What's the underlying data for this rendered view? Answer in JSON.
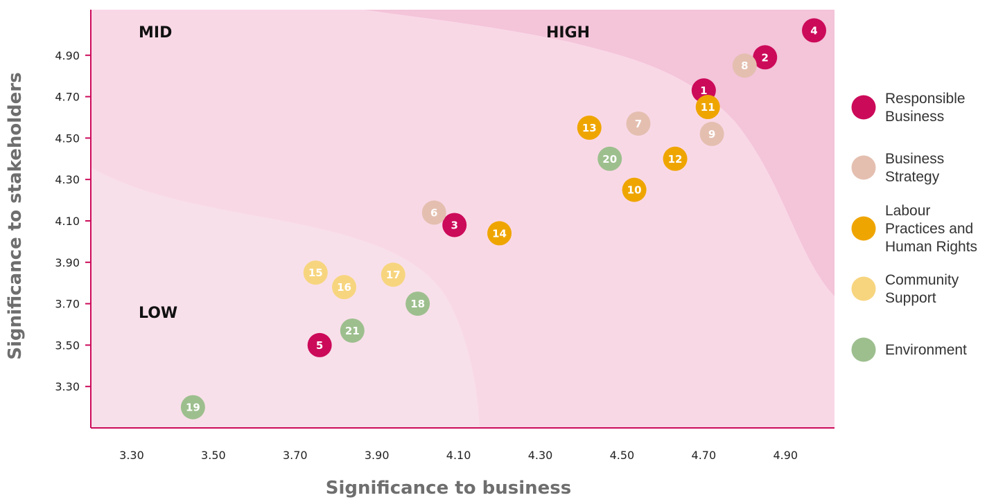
{
  "chart_data": {
    "type": "scatter",
    "xlabel": "Significance to business",
    "ylabel": "Significance to stakeholders",
    "xlim": [
      3.2,
      5.02
    ],
    "ylim": [
      3.1,
      5.12
    ],
    "x_ticks": [
      "3.30",
      "3.50",
      "3.70",
      "3.90",
      "4.10",
      "4.30",
      "4.50",
      "4.70",
      "4.90"
    ],
    "y_ticks": [
      "3.30",
      "3.50",
      "3.70",
      "3.90",
      "4.10",
      "4.30",
      "4.50",
      "4.70",
      "4.90"
    ],
    "zones": [
      "MID",
      "HIGH",
      "LOW"
    ],
    "categories": [
      {
        "key": "rb",
        "name": "Responsible Business",
        "lines": [
          "Responsible",
          "Business"
        ],
        "color": "#cc0a5a"
      },
      {
        "key": "bs",
        "name": "Business Strategy",
        "lines": [
          "Business",
          "Strategy"
        ],
        "color": "#e4bfb0"
      },
      {
        "key": "lp",
        "name": "Labour Practices and Human Rights",
        "lines": [
          "Labour",
          "Practices and",
          "Human Rights"
        ],
        "color": "#efa500"
      },
      {
        "key": "cs",
        "name": "Community Support",
        "lines": [
          "Community",
          "Support"
        ],
        "color": "#f7d57f"
      },
      {
        "key": "env",
        "name": "Environment",
        "lines": [
          "Environment"
        ],
        "color": "#9dbf8e"
      }
    ],
    "points": [
      {
        "label": "1",
        "x": 4.7,
        "y": 4.73,
        "cat": "rb"
      },
      {
        "label": "2",
        "x": 4.85,
        "y": 4.89,
        "cat": "rb"
      },
      {
        "label": "3",
        "x": 4.09,
        "y": 4.08,
        "cat": "rb"
      },
      {
        "label": "4",
        "x": 4.97,
        "y": 5.02,
        "cat": "rb"
      },
      {
        "label": "5",
        "x": 3.76,
        "y": 3.5,
        "cat": "rb"
      },
      {
        "label": "6",
        "x": 4.04,
        "y": 4.14,
        "cat": "bs"
      },
      {
        "label": "7",
        "x": 4.54,
        "y": 4.57,
        "cat": "bs"
      },
      {
        "label": "8",
        "x": 4.8,
        "y": 4.85,
        "cat": "bs"
      },
      {
        "label": "9",
        "x": 4.72,
        "y": 4.52,
        "cat": "bs"
      },
      {
        "label": "10",
        "x": 4.53,
        "y": 4.25,
        "cat": "lp"
      },
      {
        "label": "11",
        "x": 4.71,
        "y": 4.65,
        "cat": "lp"
      },
      {
        "label": "12",
        "x": 4.63,
        "y": 4.4,
        "cat": "lp"
      },
      {
        "label": "13",
        "x": 4.42,
        "y": 4.55,
        "cat": "lp"
      },
      {
        "label": "14",
        "x": 4.2,
        "y": 4.04,
        "cat": "lp"
      },
      {
        "label": "15",
        "x": 3.75,
        "y": 3.85,
        "cat": "cs"
      },
      {
        "label": "16",
        "x": 3.82,
        "y": 3.78,
        "cat": "cs"
      },
      {
        "label": "17",
        "x": 3.94,
        "y": 3.84,
        "cat": "cs"
      },
      {
        "label": "18",
        "x": 4.0,
        "y": 3.7,
        "cat": "env"
      },
      {
        "label": "19",
        "x": 3.45,
        "y": 3.2,
        "cat": "env"
      },
      {
        "label": "20",
        "x": 4.47,
        "y": 4.4,
        "cat": "env"
      },
      {
        "label": "21",
        "x": 3.84,
        "y": 3.57,
        "cat": "env"
      }
    ]
  }
}
